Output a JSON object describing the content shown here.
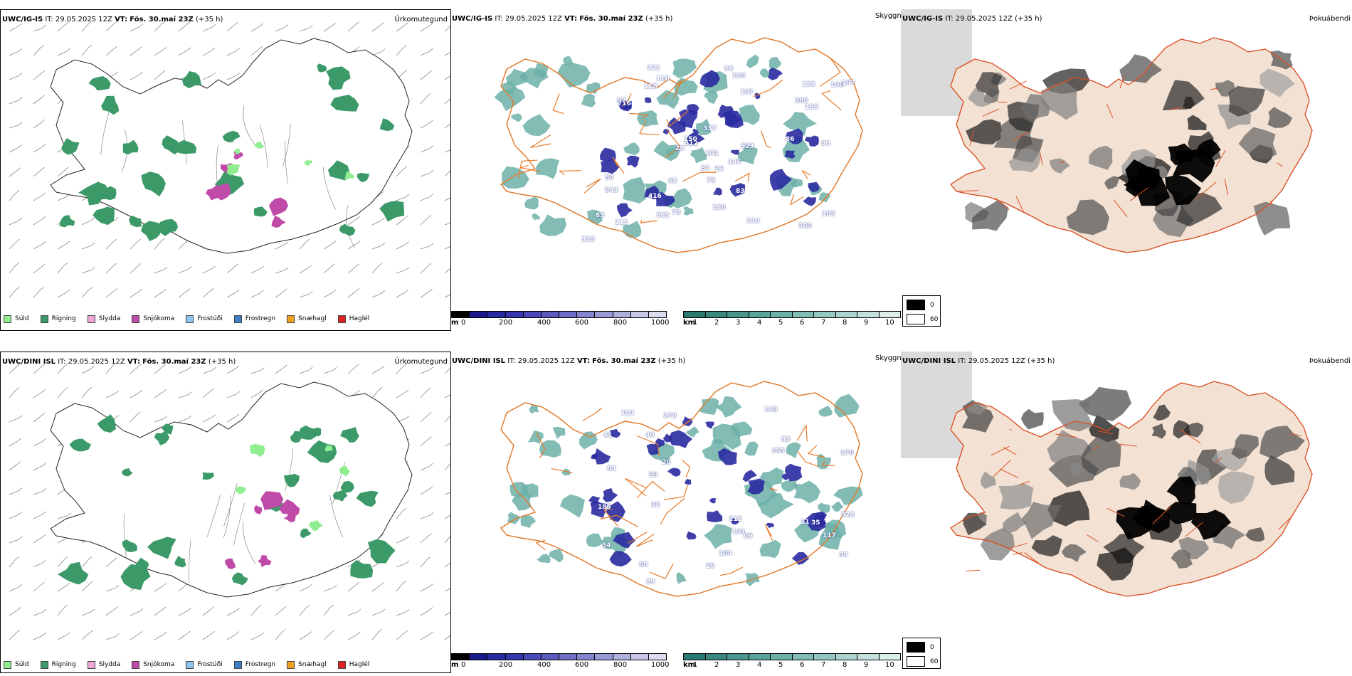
{
  "rows": [
    {
      "model": "UWC/IG-IS",
      "left_panel": {
        "it_label": "IT:",
        "it_value": "29.05.2025 12Z",
        "vt_label": "VT:",
        "vt_value": "Fös. 30.maí 23Z",
        "lead": "(+35 h)",
        "product": "Úrkomutegund"
      },
      "mid_panel": {
        "it_label": "IT:",
        "it_value": "29.05.2025 12Z",
        "vt_label": "VT:",
        "vt_value": "Fös. 30.maí 23Z",
        "lead": "(+35 h)",
        "product": "Skyggni",
        "labels": [
          "118",
          "96",
          "512",
          "385",
          "943",
          "716",
          "523",
          "365",
          "68",
          "100",
          "385",
          "110",
          "97",
          "197",
          "73",
          "123",
          "111",
          "156",
          "96",
          "114",
          "89",
          "150",
          "86",
          "337",
          "54",
          "185",
          "416",
          "85",
          "29",
          "133",
          "146",
          "73",
          "130",
          "121",
          "83",
          "107",
          "36",
          "323",
          "101"
        ]
      },
      "right_panel": {
        "it_label": "IT:",
        "it_value": "29.05.2025 12Z",
        "lead": "(+35 h)",
        "product": "Þokuábendi"
      }
    },
    {
      "model": "UWC/DINI ISL",
      "left_panel": {
        "it_label": "IT:",
        "it_value": "29.05.2025 12Z",
        "vt_label": "VT:",
        "vt_value": "Fös. 30.maí 23Z",
        "lead": "(+35 h)",
        "product": "Úrkomutegund"
      },
      "mid_panel": {
        "it_label": "IT:",
        "it_value": "29.05.2025 12Z",
        "vt_label": "VT:",
        "vt_value": "Fös. 30.maí 23Z",
        "lead": "(+35 h)",
        "product": "Skyggni",
        "labels": [
          "30",
          "40",
          "39",
          "29",
          "68",
          "54",
          "212",
          "328",
          "41",
          "104",
          "11",
          "20",
          "29",
          "63",
          "185",
          "83",
          "101",
          "155",
          "149",
          "278",
          "131",
          "09",
          "117",
          "170",
          "35",
          "99"
        ]
      },
      "right_panel": {
        "it_label": "IT:",
        "it_value": "29.05.2025 12Z",
        "lead": "(+35 h)",
        "product": "Þokuábendi"
      }
    }
  ],
  "precip_legend": [
    {
      "label": "Súld",
      "color": "#90ee90"
    },
    {
      "label": "Rigning",
      "color": "#3b9a68"
    },
    {
      "label": "Slydda",
      "color": "#f0a6d6"
    },
    {
      "label": "Snjókoma",
      "color": "#c04aa8"
    },
    {
      "label": "Frostúði",
      "color": "#8ec4f0"
    },
    {
      "label": "Frostregn",
      "color": "#3e7dc8"
    },
    {
      "label": "Snæhagl",
      "color": "#f0a020"
    },
    {
      "label": "Haglél",
      "color": "#e02020"
    }
  ],
  "ceiling_bar": {
    "unit": "m",
    "ticks": [
      "0",
      "200",
      "400",
      "600",
      "800",
      "1000"
    ],
    "colors": [
      "#000000",
      "#1a1a8a",
      "#2a2aa0",
      "#3636ac",
      "#4848b6",
      "#5a5abe",
      "#6e6ec6",
      "#8484ce",
      "#9a9ad6",
      "#b0b0de",
      "#c8c8e6",
      "#dcdcf0"
    ]
  },
  "visibility_bar": {
    "unit": "km",
    "ticks": [
      "1",
      "2",
      "3",
      "4",
      "5",
      "6",
      "7",
      "8",
      "9",
      "10"
    ],
    "colors": [
      "#2a7a72",
      "#3a8880",
      "#4a968e",
      "#5aa49c",
      "#6cb0a8",
      "#80bcb4",
      "#96c8c2",
      "#acd4ce",
      "#c4e0dc",
      "#dceeea"
    ]
  },
  "fog_legend": {
    "items": [
      {
        "value": "0",
        "color": "#000000"
      },
      {
        "value": "60",
        "color": "#ffffff"
      }
    ]
  },
  "colors": {
    "rain": "#3b9a68",
    "snow": "#c04aa8",
    "sleet": "#f0a6d6",
    "drizzle": "#90ee90",
    "ceiling": "#2a2aa0",
    "visibility": "#6cb0a8",
    "roads": "#e67a28",
    "land": "#f3e2d4"
  }
}
